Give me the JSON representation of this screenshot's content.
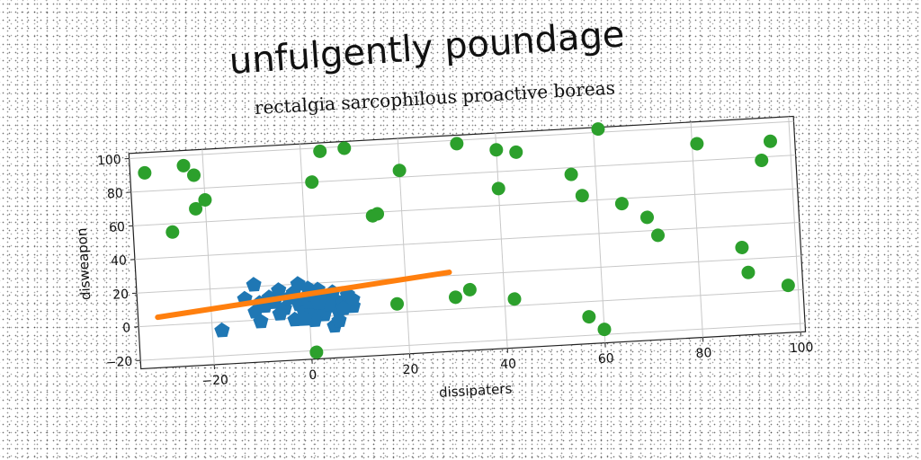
{
  "chart_data": {
    "type": "scatter",
    "title": "unfulgently poundage",
    "subtitle": "rectalgia sarcophilous proactive boreas",
    "xlabel": "dissipaters",
    "ylabel": "disweapon",
    "xlim": [
      -35,
      101
    ],
    "ylim": [
      -25,
      103
    ],
    "xticks": [
      -20,
      0,
      20,
      40,
      60,
      80,
      100
    ],
    "yticks": [
      -20,
      0,
      20,
      40,
      60,
      80,
      100
    ],
    "grid": true,
    "series": [
      {
        "kind": "scatter",
        "marker": "pentagon",
        "color": "#1f77b4",
        "points": [
          [
            -18,
            -5
          ],
          [
            -11,
            21
          ],
          [
            -13,
            13
          ],
          [
            -10,
            10
          ],
          [
            -11,
            5
          ],
          [
            -9,
            8
          ],
          [
            -8,
            13
          ],
          [
            -6,
            17
          ],
          [
            -7,
            10
          ],
          [
            -5,
            6
          ],
          [
            -4,
            12
          ],
          [
            -3,
            15
          ],
          [
            -2,
            8
          ],
          [
            -1,
            11
          ],
          [
            -2,
            20
          ],
          [
            0,
            17
          ],
          [
            -1,
            3
          ],
          [
            1,
            4
          ],
          [
            0,
            9
          ],
          [
            1,
            13
          ],
          [
            2,
            16
          ],
          [
            3,
            12
          ],
          [
            4,
            6
          ],
          [
            5,
            10
          ],
          [
            6,
            3
          ],
          [
            7,
            8
          ],
          [
            8,
            12
          ],
          [
            9,
            5
          ],
          [
            9,
            9
          ],
          [
            5,
            14
          ],
          [
            3,
            1
          ],
          [
            -3,
            -1
          ],
          [
            1,
            -2
          ],
          [
            -10,
            -1
          ],
          [
            5,
            -6
          ],
          [
            6,
            -3
          ],
          [
            -6,
            3
          ],
          [
            -1,
            -1
          ],
          [
            4,
            7
          ],
          [
            7,
            4
          ],
          [
            2,
            8
          ]
        ]
      },
      {
        "kind": "line",
        "color": "#ff7f0e",
        "points": [
          [
            -31,
            5
          ],
          [
            29,
            22
          ]
        ]
      },
      {
        "kind": "scatter",
        "marker": "circle",
        "color": "#2ca02c",
        "points": [
          [
            -32,
            91
          ],
          [
            -27,
            55
          ],
          [
            -24,
            94
          ],
          [
            -22,
            88
          ],
          [
            -22,
            68
          ],
          [
            -20,
            73
          ],
          [
            2,
            80
          ],
          [
            4,
            98
          ],
          [
            9,
            99
          ],
          [
            14,
            58
          ],
          [
            15,
            59
          ],
          [
            20,
            84
          ],
          [
            18,
            5
          ],
          [
            1,
            -21
          ],
          [
            30,
            7
          ],
          [
            33,
            11
          ],
          [
            32,
            98
          ],
          [
            40,
            93
          ],
          [
            40,
            70
          ],
          [
            42,
            4
          ],
          [
            44,
            91
          ],
          [
            55,
            76
          ],
          [
            57,
            63
          ],
          [
            57,
            -9
          ],
          [
            60,
            -17
          ],
          [
            61,
            102
          ],
          [
            65,
            57
          ],
          [
            70,
            48
          ],
          [
            72,
            37
          ],
          [
            81,
            90
          ],
          [
            89,
            27
          ],
          [
            90,
            12
          ],
          [
            94,
            78
          ],
          [
            96,
            89
          ],
          [
            98,
            3
          ]
        ]
      }
    ]
  }
}
